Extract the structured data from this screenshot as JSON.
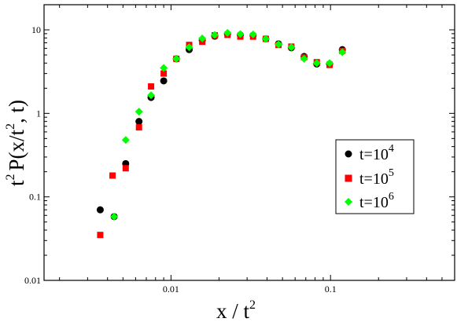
{
  "chart_data": {
    "type": "scatter",
    "title": "",
    "xlabel": {
      "base": "x / t",
      "exp": "2"
    },
    "ylabel": {
      "p1": "t",
      "e1": "2",
      "p2": "P(x/t",
      "e2": "2",
      "p3": ", t)"
    },
    "x_scale": "log",
    "y_scale": "log",
    "xlim": [
      0.0016,
      0.6
    ],
    "ylim": [
      0.01,
      20
    ],
    "x_ticks": [
      {
        "value": 0.01,
        "label": "0.01"
      },
      {
        "value": 0.1,
        "label": "0.1"
      }
    ],
    "y_ticks": [
      {
        "value": 0.01,
        "label": "0.01"
      },
      {
        "value": 0.1,
        "label": "0.1"
      },
      {
        "value": 1,
        "label": "1"
      },
      {
        "value": 10,
        "label": "10"
      }
    ],
    "grid": false,
    "legend_position": "right",
    "series": [
      {
        "name": "t=10^4",
        "base": "t=10",
        "exp": "4",
        "marker": "circle",
        "color": "#000000",
        "x": [
          0.0036,
          0.0044,
          0.0052,
          0.0063,
          0.0075,
          0.009,
          0.0108,
          0.013,
          0.0157,
          0.0188,
          0.0226,
          0.0272,
          0.0327,
          0.0393,
          0.0472,
          0.0568,
          0.0683,
          0.082,
          0.0987,
          0.1186
        ],
        "y": [
          0.07,
          0.058,
          0.25,
          0.8,
          1.55,
          2.45,
          4.5,
          5.8,
          7.5,
          8.4,
          8.9,
          8.7,
          8.6,
          7.8,
          6.8,
          6.1,
          4.8,
          3.9,
          3.9,
          5.8
        ]
      },
      {
        "name": "t=10^5",
        "base": "t=10",
        "exp": "5",
        "marker": "square",
        "color": "#ff0000",
        "x": [
          0.0036,
          0.0043,
          0.0052,
          0.0063,
          0.0075,
          0.009,
          0.0108,
          0.013,
          0.0157,
          0.0188,
          0.0226,
          0.0272,
          0.0327,
          0.0393,
          0.0472,
          0.0568,
          0.0683,
          0.082,
          0.0987,
          0.1186
        ],
        "y": [
          0.035,
          0.18,
          0.22,
          0.68,
          2.1,
          3.0,
          4.5,
          6.6,
          7.2,
          8.6,
          8.7,
          8.3,
          8.3,
          7.8,
          6.6,
          6.3,
          4.7,
          4.1,
          3.8,
          5.6
        ]
      },
      {
        "name": "t=10^6",
        "base": "t=10",
        "exp": "6",
        "marker": "diamond",
        "color": "#00ff00",
        "x": [
          0.0044,
          0.0052,
          0.0063,
          0.0075,
          0.009,
          0.0108,
          0.013,
          0.0157,
          0.0188,
          0.0226,
          0.0272,
          0.0327,
          0.0393,
          0.0472,
          0.0568,
          0.0683,
          0.082,
          0.0987,
          0.1186
        ],
        "y": [
          0.058,
          0.48,
          1.05,
          1.65,
          3.5,
          4.5,
          6.2,
          7.9,
          8.7,
          9.2,
          8.9,
          8.8,
          7.8,
          6.7,
          6.2,
          4.5,
          4.0,
          4.0,
          5.4
        ]
      }
    ]
  }
}
